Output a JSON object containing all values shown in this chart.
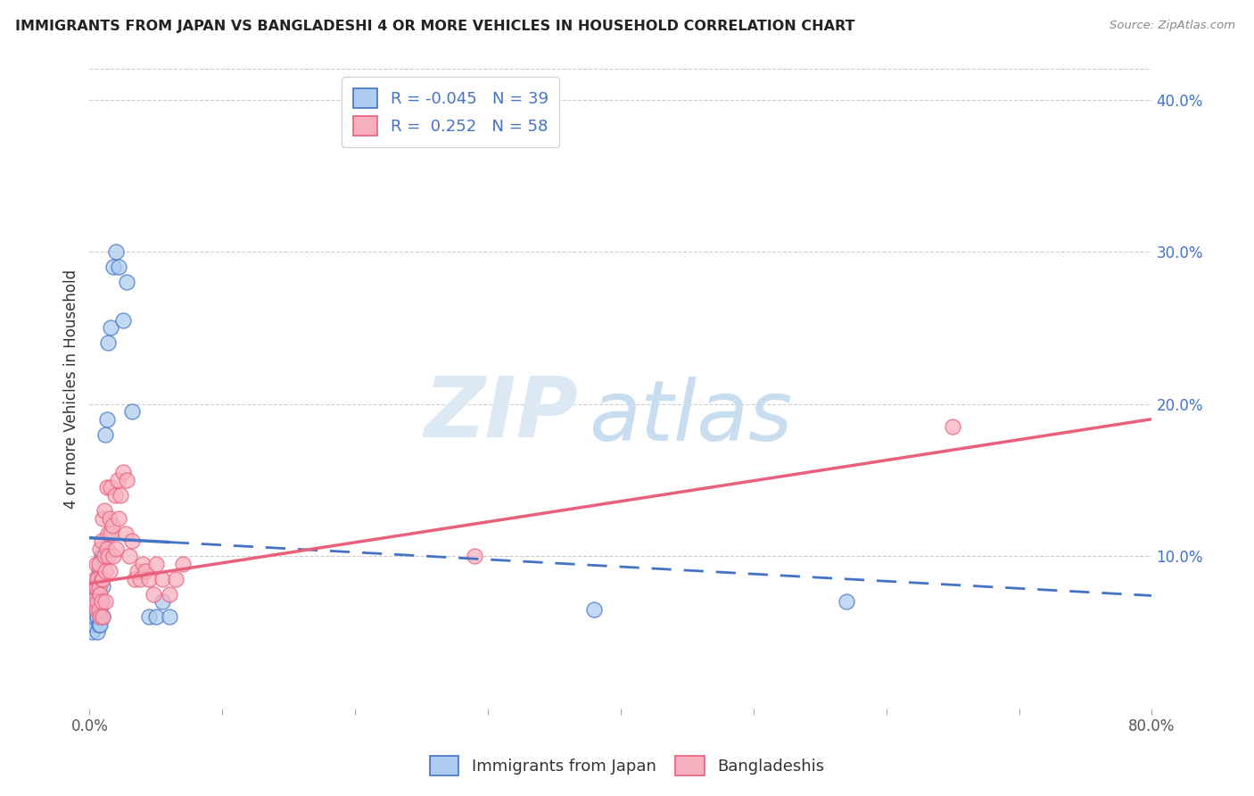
{
  "title": "IMMIGRANTS FROM JAPAN VS BANGLADESHI 4 OR MORE VEHICLES IN HOUSEHOLD CORRELATION CHART",
  "source": "Source: ZipAtlas.com",
  "ylabel": "4 or more Vehicles in Household",
  "xlim": [
    0.0,
    0.8
  ],
  "ylim": [
    0.0,
    0.42
  ],
  "xtick_positions": [
    0.0,
    0.1,
    0.2,
    0.3,
    0.4,
    0.5,
    0.6,
    0.7,
    0.8
  ],
  "xticklabels": [
    "0.0%",
    "",
    "",
    "",
    "",
    "",
    "",
    "",
    "80.0%"
  ],
  "yticks_right": [
    0.1,
    0.2,
    0.3,
    0.4
  ],
  "ytick_labels_right": [
    "10.0%",
    "20.0%",
    "30.0%",
    "40.0%"
  ],
  "legend_japan_r": "-0.045",
  "legend_japan_n": "39",
  "legend_bang_r": "0.252",
  "legend_bang_n": "58",
  "japan_color": "#aeccf0",
  "bang_color": "#f8b0c0",
  "japan_line_color": "#4472c4",
  "bang_line_color": "#e8607a",
  "watermark_zip": "ZIP",
  "watermark_atlas": "atlas",
  "japan_x": [
    0.002,
    0.002,
    0.003,
    0.003,
    0.004,
    0.004,
    0.005,
    0.005,
    0.005,
    0.006,
    0.006,
    0.006,
    0.007,
    0.007,
    0.007,
    0.008,
    0.008,
    0.008,
    0.009,
    0.009,
    0.01,
    0.01,
    0.011,
    0.012,
    0.013,
    0.014,
    0.016,
    0.018,
    0.02,
    0.022,
    0.025,
    0.028,
    0.032,
    0.045,
    0.05,
    0.055,
    0.06,
    0.38,
    0.57
  ],
  "japan_y": [
    0.05,
    0.06,
    0.055,
    0.07,
    0.06,
    0.075,
    0.065,
    0.075,
    0.085,
    0.05,
    0.06,
    0.08,
    0.055,
    0.07,
    0.09,
    0.055,
    0.065,
    0.085,
    0.07,
    0.1,
    0.06,
    0.08,
    0.1,
    0.18,
    0.19,
    0.24,
    0.25,
    0.29,
    0.3,
    0.29,
    0.255,
    0.28,
    0.195,
    0.06,
    0.06,
    0.07,
    0.06,
    0.065,
    0.07
  ],
  "bang_x": [
    0.002,
    0.003,
    0.004,
    0.005,
    0.005,
    0.005,
    0.006,
    0.006,
    0.007,
    0.007,
    0.007,
    0.008,
    0.008,
    0.008,
    0.009,
    0.009,
    0.009,
    0.01,
    0.01,
    0.01,
    0.011,
    0.011,
    0.012,
    0.012,
    0.013,
    0.013,
    0.014,
    0.014,
    0.015,
    0.015,
    0.016,
    0.016,
    0.017,
    0.018,
    0.019,
    0.02,
    0.021,
    0.022,
    0.023,
    0.025,
    0.027,
    0.028,
    0.03,
    0.032,
    0.034,
    0.036,
    0.038,
    0.04,
    0.042,
    0.045,
    0.048,
    0.05,
    0.055,
    0.06,
    0.065,
    0.07,
    0.29,
    0.65
  ],
  "bang_y": [
    0.07,
    0.08,
    0.085,
    0.065,
    0.08,
    0.095,
    0.07,
    0.085,
    0.065,
    0.08,
    0.095,
    0.06,
    0.075,
    0.105,
    0.07,
    0.085,
    0.11,
    0.06,
    0.085,
    0.125,
    0.1,
    0.13,
    0.07,
    0.09,
    0.105,
    0.145,
    0.1,
    0.115,
    0.09,
    0.125,
    0.115,
    0.145,
    0.12,
    0.1,
    0.14,
    0.105,
    0.15,
    0.125,
    0.14,
    0.155,
    0.115,
    0.15,
    0.1,
    0.11,
    0.085,
    0.09,
    0.085,
    0.095,
    0.09,
    0.085,
    0.075,
    0.095,
    0.085,
    0.075,
    0.085,
    0.095,
    0.1,
    0.185
  ],
  "japan_line_x0": 0.0,
  "japan_line_x1": 0.8,
  "japan_line_y0": 0.112,
  "japan_line_y1": 0.074,
  "bang_line_x0": 0.0,
  "bang_line_x1": 0.8,
  "bang_line_y0": 0.082,
  "bang_line_y1": 0.19
}
